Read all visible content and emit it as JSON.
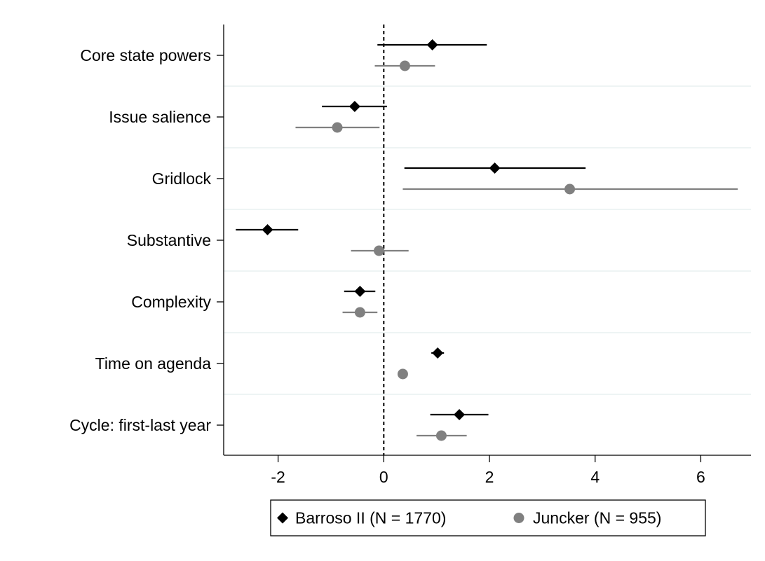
{
  "chart_data": {
    "type": "scatter",
    "subtype": "coefficient-plot",
    "categories": [
      "Core state powers",
      "Issue salience",
      "Gridlock",
      "Substantive",
      "Complexity",
      "Time on agenda",
      "Cycle: first-last year"
    ],
    "series": [
      {
        "name": "Barroso II (N = 1770)",
        "marker": "diamond",
        "color": "#000000",
        "estimates": [
          0.92,
          -0.55,
          2.1,
          -2.2,
          -0.45,
          1.02,
          1.43
        ],
        "ci_low": [
          -0.12,
          -1.17,
          0.39,
          -2.8,
          -0.75,
          0.9,
          0.88
        ],
        "ci_high": [
          1.95,
          0.06,
          3.82,
          -1.62,
          -0.16,
          1.14,
          1.98
        ]
      },
      {
        "name": "Juncker (N = 955)",
        "marker": "circle",
        "color": "#808080",
        "estimates": [
          0.4,
          -0.88,
          3.52,
          -0.09,
          -0.45,
          0.36,
          1.09
        ],
        "ci_low": [
          -0.17,
          -1.67,
          0.36,
          -0.62,
          -0.78,
          0.3,
          0.62
        ],
        "ci_high": [
          0.97,
          -0.08,
          6.7,
          0.47,
          -0.12,
          0.42,
          1.57
        ]
      }
    ],
    "x_ticks": [
      "-2",
      "0",
      "2",
      "4",
      "6"
    ],
    "x_tick_values": [
      -2,
      0,
      2,
      4,
      6
    ],
    "xlim": [
      -3.03,
      6.95
    ],
    "reference_line": 0,
    "grid": true,
    "legend_position": "bottom-center",
    "title": "",
    "xlabel": "",
    "ylabel": ""
  }
}
